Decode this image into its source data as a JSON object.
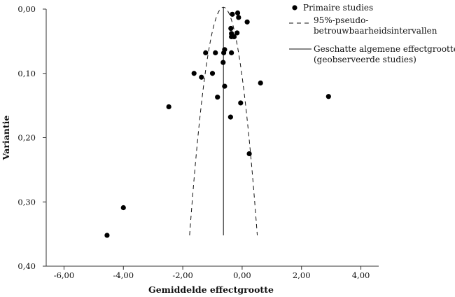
{
  "chart_data": {
    "type": "scatter",
    "xlabel": "Gemiddelde effectgrootte",
    "ylabel": "Variantie",
    "xlim": [
      -6.6,
      4.6
    ],
    "ylim": [
      0.0,
      0.4
    ],
    "y_inverted": true,
    "x_ticks": [
      -6,
      -4,
      -2,
      0,
      2,
      4
    ],
    "x_tick_labels": [
      "-6,00",
      "-4,00",
      "-2,00",
      "0,00",
      "2,00",
      "4,00"
    ],
    "y_ticks": [
      0.0,
      0.1,
      0.2,
      0.3,
      0.4
    ],
    "y_tick_labels": [
      "0,00",
      "0,10",
      "0,20",
      "0,30",
      "0,40"
    ],
    "grid": false,
    "legend_position": "top-right",
    "legend": [
      {
        "key": "points",
        "label": "Primaire studies"
      },
      {
        "key": "ci",
        "label": "95%-pseudo-betrouwbaarheidsintervallen",
        "label_lines": [
          "95%-pseudo-",
          "betrouwbaarheidsintervallen"
        ]
      },
      {
        "key": "effect",
        "label": "Geschatte algemene effectgrootte (geobserveerde studies)",
        "label_lines": [
          "Geschatte algemene effectgrootte",
          "(geobserveerde studies)"
        ]
      }
    ],
    "overall_effect": -0.63,
    "ci_curve": {
      "vertex_x": -0.63,
      "vertex_y": -0.003,
      "bottom_y": 0.352,
      "bottom_left_x": -1.77,
      "bottom_right_x": 0.51
    },
    "points": [
      {
        "x": -0.33,
        "y": 0.008
      },
      {
        "x": -0.15,
        "y": 0.006
      },
      {
        "x": -0.12,
        "y": 0.013
      },
      {
        "x": 0.17,
        "y": 0.02
      },
      {
        "x": -0.38,
        "y": 0.03
      },
      {
        "x": -0.36,
        "y": 0.038
      },
      {
        "x": -0.17,
        "y": 0.037
      },
      {
        "x": -0.36,
        "y": 0.043
      },
      {
        "x": -0.27,
        "y": 0.043
      },
      {
        "x": -0.59,
        "y": 0.063
      },
      {
        "x": -0.62,
        "y": 0.068
      },
      {
        "x": -1.23,
        "y": 0.068
      },
      {
        "x": -0.9,
        "y": 0.068
      },
      {
        "x": -0.36,
        "y": 0.068
      },
      {
        "x": -0.64,
        "y": 0.083
      },
      {
        "x": -1.62,
        "y": 0.1
      },
      {
        "x": -1.0,
        "y": 0.1
      },
      {
        "x": -1.37,
        "y": 0.106
      },
      {
        "x": 0.62,
        "y": 0.115
      },
      {
        "x": -0.59,
        "y": 0.12
      },
      {
        "x": 2.91,
        "y": 0.136
      },
      {
        "x": -0.83,
        "y": 0.137
      },
      {
        "x": -0.05,
        "y": 0.146
      },
      {
        "x": -2.47,
        "y": 0.152
      },
      {
        "x": -0.39,
        "y": 0.168
      },
      {
        "x": 0.24,
        "y": 0.225
      },
      {
        "x": -4.0,
        "y": 0.309
      },
      {
        "x": -4.55,
        "y": 0.352
      }
    ]
  }
}
